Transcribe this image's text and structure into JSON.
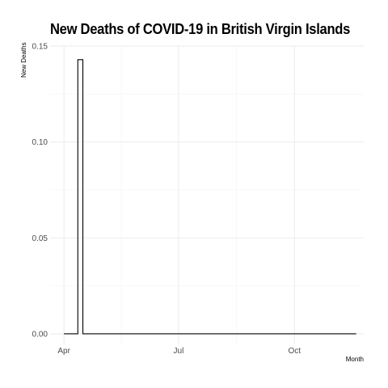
{
  "chart_data": {
    "type": "line",
    "title": "New Deaths of COVID-19 in British Virgin Islands",
    "xlabel": "Month",
    "ylabel": "New Deaths",
    "x_ticks": [
      {
        "label": "Apr",
        "date": "2020-04-01"
      },
      {
        "label": "Jul",
        "date": "2020-07-01"
      },
      {
        "label": "Oct",
        "date": "2020-10-01"
      }
    ],
    "y_ticks": [
      {
        "label": "0.00",
        "value": 0
      },
      {
        "label": "0.05",
        "value": 0.05
      },
      {
        "label": "0.10",
        "value": 0.1
      },
      {
        "label": "0.15",
        "value": 0.15
      }
    ],
    "xlim": [
      "2020-03-21",
      "2020-11-25"
    ],
    "ylim": [
      -0.0055,
      0.15
    ],
    "grid": true,
    "series": [
      {
        "color": "#000000",
        "points": [
          [
            "2020-04-01",
            0
          ],
          [
            "2020-04-12",
            0
          ],
          [
            "2020-04-12",
            0.1429
          ],
          [
            "2020-04-16",
            0.1429
          ],
          [
            "2020-04-16",
            0
          ],
          [
            "2020-11-19",
            0
          ]
        ]
      }
    ]
  }
}
